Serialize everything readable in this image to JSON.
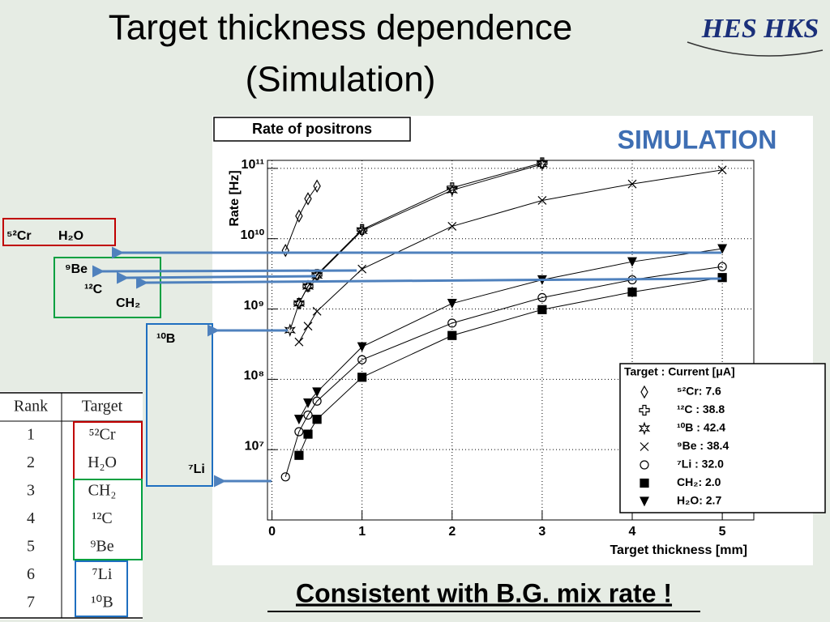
{
  "slide": {
    "title": [
      "Target thickness dependence",
      "(Simulation)"
    ],
    "logo": "HES HKS",
    "labels": [
      "⁵²Cr",
      "H₂O",
      "⁹Be",
      "¹²C",
      "CH₂",
      "¹⁰B",
      "⁷Li"
    ],
    "table": {
      "header": [
        "Rank",
        "Target"
      ],
      "rows": [
        [
          "1",
          "⁵²Cr"
        ],
        [
          "2",
          "H₂O"
        ],
        [
          "3",
          "CH₂"
        ],
        [
          "4",
          "¹²C"
        ],
        [
          "5",
          "⁹Be"
        ],
        [
          "6",
          "⁷Li"
        ],
        [
          "7",
          "¹⁰B"
        ]
      ]
    },
    "footer": "Consistent with B.G. mix rate !"
  },
  "chart_data": {
    "type": "scatter",
    "title": "Rate of positrons",
    "annotation": "SIMULATION",
    "xlabel": "Target thickness [mm]",
    "ylabel": "Rate [Hz]",
    "legend_title": "Target : Current [μA]",
    "log_y": true,
    "grid": true,
    "xlim": [
      -0.05,
      5.35
    ],
    "xticks": [
      0,
      1,
      2,
      3,
      4,
      5
    ],
    "ylim": [
      1000000,
      130000000000
    ],
    "yticks": [
      {
        "value": 10000000,
        "label": "10⁷"
      },
      {
        "value": 100000000,
        "label": "10⁸"
      },
      {
        "value": 1000000000,
        "label": "10⁹"
      },
      {
        "value": 10000000000,
        "label": "10¹⁰"
      },
      {
        "value": 100000000000,
        "label": "10¹¹"
      }
    ],
    "series": [
      {
        "name": "⁵²Cr: 7.6",
        "color": "#000000",
        "marker": "diamond",
        "x": [
          0.15,
          0.3,
          0.4,
          0.5
        ],
        "values": [
          6800000000,
          21000000000,
          37000000000,
          56000000000
        ]
      },
      {
        "name": "¹²C : 38.8",
        "color": "#000000",
        "marker": "plus",
        "x": [
          0.3,
          0.4,
          0.5,
          1,
          2,
          3
        ],
        "values": [
          1200000000,
          2100000000,
          3100000000,
          13500000000,
          53000000000,
          120000000000
        ]
      },
      {
        "name": "¹⁰B : 42.4",
        "color": "#000000",
        "marker": "star",
        "x": [
          0.2,
          0.3,
          0.4,
          0.5,
          1,
          2,
          3
        ],
        "values": [
          500000000,
          1200000000,
          2100000000,
          3000000000,
          13000000000,
          49000000000,
          115000000000
        ]
      },
      {
        "name": "⁹Be : 38.4",
        "color": "#000000",
        "marker": "x",
        "x": [
          0.3,
          0.4,
          0.5,
          1,
          2,
          3,
          4,
          5
        ],
        "values": [
          340000000,
          570000000,
          930000000,
          3700000000,
          15000000000,
          35000000000,
          60000000000,
          95000000000
        ]
      },
      {
        "name": "⁷Li : 32.0",
        "color": "#000000",
        "marker": "circle",
        "x": [
          0.15,
          0.3,
          0.4,
          0.5,
          1,
          2,
          3,
          4,
          5
        ],
        "values": [
          4100000,
          18000000,
          31000000,
          49000000,
          190000000,
          630000000,
          1450000000,
          2600000000,
          4000000000
        ]
      },
      {
        "name": "CH₂: 2.0",
        "color": "#000000",
        "marker": "square",
        "x": [
          0.3,
          0.4,
          0.5,
          1,
          2,
          3,
          4,
          5
        ],
        "values": [
          8300000,
          16600000,
          27000000,
          107000000,
          420000000,
          980000000,
          1740000000,
          2800000000
        ]
      },
      {
        "name": "H₂O: 2.7",
        "color": "#000000",
        "marker": "triangle-down",
        "x": [
          0.3,
          0.4,
          0.5,
          1,
          2,
          3,
          4,
          5
        ],
        "values": [
          27000000,
          46000000,
          66000000,
          290000000,
          1200000000,
          2600000000,
          4700000000,
          7200000000
        ]
      }
    ]
  }
}
